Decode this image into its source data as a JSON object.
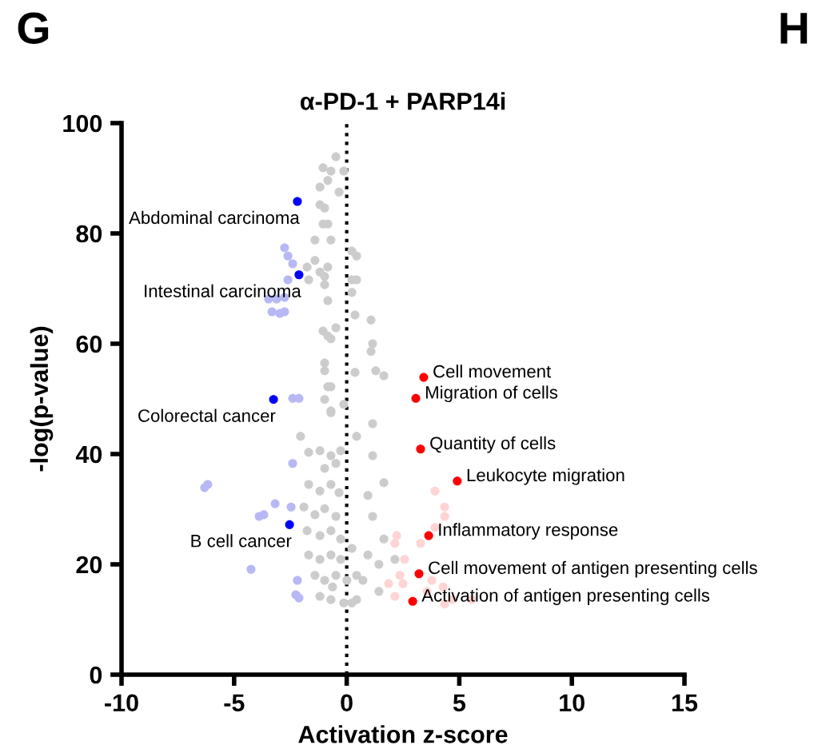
{
  "chart_data": {
    "type": "scatter",
    "title": "α-PD-1 + PARP14i",
    "xlabel": "Activation z-score",
    "ylabel": "-log(p-value)",
    "xlim": [
      -10,
      15
    ],
    "ylim": [
      0,
      100
    ],
    "xticks": [
      {
        "value": -10,
        "label": "-10"
      },
      {
        "value": -5,
        "label": "-5"
      },
      0,
      5,
      10,
      15
    ],
    "yticks": [
      0,
      20,
      40,
      60,
      80,
      100
    ],
    "grid": false,
    "legend": false,
    "marker": "circle",
    "ref_lines": [
      {
        "axis": "x",
        "value": 0,
        "color": "#000000",
        "line_style": "dotted"
      }
    ],
    "series": [
      {
        "color": "#cccccc",
        "x": [
          -0.48,
          -0.13,
          -0.7,
          -0.84,
          -0.34,
          -0.98,
          -0.84,
          -0.7,
          0.23,
          0.44,
          -0.84,
          -0.98,
          0.23,
          0.44,
          0.23,
          0.37,
          1.08,
          -0.48,
          -0.84,
          1.15,
          1.08,
          -0.98,
          0.37,
          1.29,
          1.65,
          -0.84,
          -0.13,
          -1.05,
          -1.19,
          -1.19,
          -1.05,
          -1.41,
          -1.41,
          -1.76,
          -1.19,
          -1.69,
          -0.98,
          -0.84,
          -1.05,
          -0.7,
          -0.98,
          -0.7,
          -0.98,
          -0.7,
          -2.05,
          -1.69,
          -1.19,
          -0.7,
          -0.27,
          -0.98,
          -0.48,
          -1.69,
          -1.19,
          -0.7,
          -0.34,
          -1.9,
          -1.41,
          -0.98,
          -0.48,
          -1.76,
          -1.19,
          -0.7,
          -0.27,
          -1.69,
          -1.19,
          -0.7,
          -0.27,
          0.23,
          -1.41,
          -0.98,
          -0.48,
          0.01,
          0.44,
          -1.19,
          -0.7,
          -0.13,
          0.44,
          -0.7,
          0.44,
          1.15,
          1.15,
          1.65,
          0.94,
          1.15,
          1.65,
          0.94,
          1.43,
          0.72,
          1.43,
          0.23,
          -0.63,
          2.14
        ],
        "values": [
          93.9,
          91.3,
          91.3,
          89.6,
          87.5,
          84.6,
          81.7,
          78.8,
          76.8,
          75.9,
          73.9,
          72.2,
          71.6,
          71.6,
          69.3,
          65.2,
          64.3,
          62.9,
          61.4,
          60.0,
          58.6,
          56.5,
          54.8,
          55.1,
          54.2,
          52.2,
          49.0,
          91.9,
          88.4,
          85.2,
          81.7,
          78.8,
          75.1,
          73.9,
          73.0,
          71.6,
          70.7,
          67.8,
          62.3,
          60.9,
          55.1,
          52.2,
          49.9,
          47.5,
          43.2,
          40.3,
          40.6,
          39.7,
          40.6,
          37.4,
          38.3,
          34.5,
          33.3,
          34.5,
          33.0,
          30.4,
          29.0,
          30.1,
          28.7,
          26.1,
          25.2,
          26.1,
          24.6,
          21.7,
          20.9,
          21.7,
          20.9,
          22.9,
          18.0,
          17.1,
          18.0,
          17.1,
          18.0,
          14.2,
          13.6,
          13.0,
          13.6,
          47.8,
          43.2,
          45.5,
          39.7,
          34.8,
          32.5,
          28.7,
          24.6,
          21.7,
          20.0,
          17.1,
          15.1,
          13.0,
          15.9,
          20.9
        ]
      },
      {
        "color": "#b8b8f5",
        "x": [
          -2.76,
          -2.61,
          -2.4,
          -2.61,
          -3.47,
          -3.11,
          -2.76,
          -3.32,
          -2.97,
          -2.76,
          -2.4,
          -2.12,
          -6.31,
          -6.17,
          -2.4,
          -3.18,
          -3.89,
          -3.68,
          -2.47,
          -4.25,
          -2.19,
          -2.26,
          -2.12
        ],
        "values": [
          77.4,
          75.9,
          74.5,
          71.6,
          68.1,
          68.1,
          68.4,
          65.8,
          65.5,
          65.8,
          50.1,
          50.1,
          33.9,
          34.5,
          38.3,
          31.0,
          28.7,
          29.0,
          30.4,
          19.1,
          17.1,
          14.5,
          13.9
        ]
      },
      {
        "color": "#ffd4d4",
        "x": [
          3.92,
          4.35,
          4.35,
          3.92,
          3.28,
          2.22,
          2.14,
          2.57,
          2.36,
          2.5,
          3.78,
          4.28,
          3.57,
          4.7,
          5.55,
          3.07,
          2.14,
          1.86,
          4.35
        ],
        "values": [
          33.3,
          30.4,
          28.7,
          26.7,
          23.8,
          25.2,
          23.8,
          20.9,
          18.0,
          16.5,
          17.1,
          15.9,
          15.1,
          13.6,
          13.6,
          null,
          14.2,
          16.5,
          12.8
        ]
      },
      {
        "color": "#0000ff",
        "x": [
          -2.19,
          -2.12,
          -3.25,
          -2.54
        ],
        "values": [
          85.8,
          72.5,
          49.9,
          27.2
        ]
      },
      {
        "color": "#ff0000",
        "x": [
          3.42,
          3.07,
          3.28,
          4.91,
          3.64,
          3.21,
          2.93
        ],
        "values": [
          53.9,
          50.1,
          40.9,
          35.1,
          25.2,
          18.3,
          13.3
        ]
      }
    ],
    "annotations": [
      "G",
      "H",
      {
        "text": "Abdominal carcinoma",
        "x": -2.19,
        "y": 85.8
      },
      {
        "text": "Intestinal carcinoma",
        "x": -2.12,
        "y": 72.5
      },
      {
        "text": "Colorectal cancer",
        "x": -3.25,
        "y": 49.9
      },
      {
        "text": "B cell cancer",
        "x": -2.54,
        "y": 27.2
      },
      {
        "text": "Cell movement",
        "x": 3.42,
        "y": 53.9
      },
      {
        "text": "Migration of cells",
        "x": 3.07,
        "y": 50.1
      },
      {
        "text": "Quantity of cells",
        "x": 3.28,
        "y": 40.9
      },
      {
        "text": "Leukocyte migration",
        "x": 4.91,
        "y": 35.1
      },
      {
        "text": "Inflammatory response",
        "x": 3.64,
        "y": 25.2
      },
      {
        "text": "Cell movement of antigen presenting cells",
        "x": 3.21,
        "y": 18.3
      },
      {
        "text": "Activation of antigen presenting cells",
        "x": 2.93,
        "y": 13.3
      }
    ]
  }
}
